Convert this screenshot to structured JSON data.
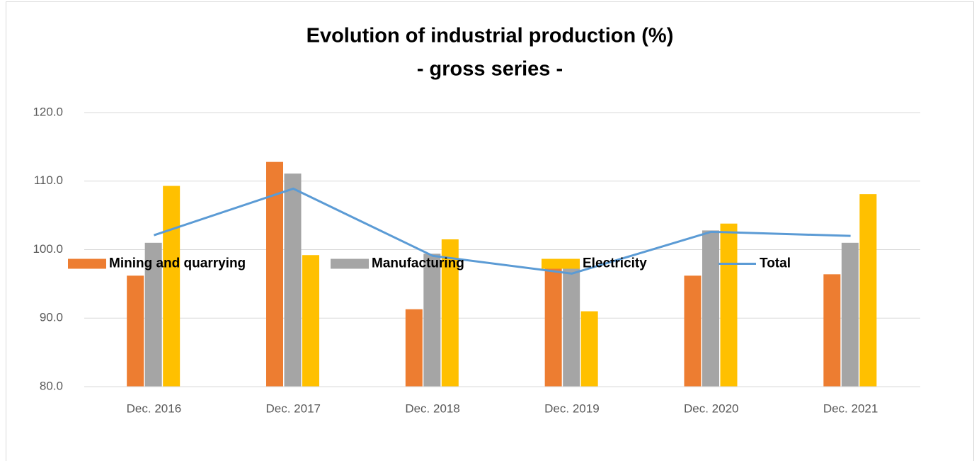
{
  "chart_data": {
    "type": "bar",
    "title": "Evolution of industrial production (%)",
    "subtitle": "- gross series -",
    "categories": [
      "Dec. 2016",
      "Dec. 2017",
      "Dec. 2018",
      "Dec. 2019",
      "Dec. 2020",
      "Dec. 2021"
    ],
    "series": [
      {
        "name": "Mining and quarrying",
        "color": "#ED7D31",
        "values": [
          96.2,
          112.8,
          91.3,
          97.6,
          96.2,
          96.4
        ]
      },
      {
        "name": "Manufacturing",
        "color": "#A5A5A5",
        "values": [
          101.0,
          111.1,
          99.4,
          97.7,
          102.8,
          101.0
        ]
      },
      {
        "name": "Electricity",
        "color": "#FFC000",
        "values": [
          109.3,
          99.2,
          101.5,
          91.0,
          103.8,
          108.1
        ]
      },
      {
        "name": "Total",
        "color": "#5B9BD5",
        "type": "line",
        "values": [
          102.1,
          108.9,
          99.1,
          96.5,
          102.6,
          102.0
        ]
      }
    ],
    "ylim": [
      80,
      120
    ],
    "yticks": [
      {
        "value": 80,
        "label": "80.0"
      },
      {
        "value": 90,
        "label": "90.0"
      },
      {
        "value": 100,
        "label": "100.0"
      },
      {
        "value": 110,
        "label": "110.0"
      },
      {
        "value": 120,
        "label": "120.0"
      }
    ],
    "grid": true,
    "legend": "center"
  }
}
